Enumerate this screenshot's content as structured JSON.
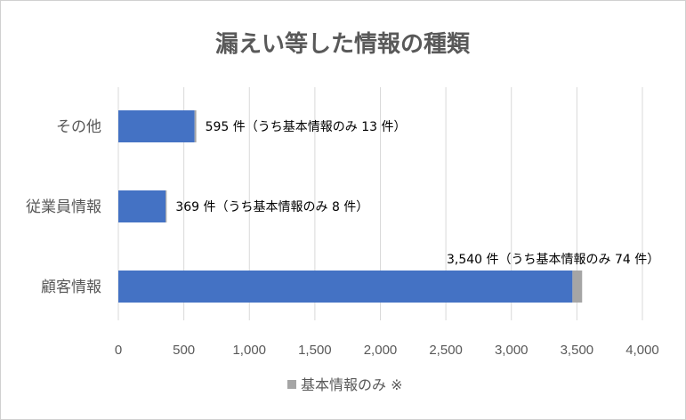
{
  "chart_data": {
    "type": "bar",
    "orientation": "horizontal",
    "stacked": true,
    "title": "漏えい等した情報の種類",
    "categories": [
      "その他",
      "従業員情報",
      "顧客情報"
    ],
    "series": [
      {
        "color": "#4472c4",
        "values": [
          582,
          361,
          3466
        ]
      },
      {
        "name": "基本情報のみ ※",
        "color": "#a5a5a5",
        "values": [
          13,
          8,
          74
        ]
      }
    ],
    "totals": [
      595,
      369,
      3540
    ],
    "data_labels": [
      "595 件（うち基本情報のみ 13 件）",
      "369 件（うち基本情報のみ 8 件）",
      "3,540 件（うち基本情報のみ 74 件）"
    ],
    "x_ticks": [
      "0",
      "500",
      "1,000",
      "1,500",
      "2,000",
      "2,500",
      "3,000",
      "3,500",
      "4,000"
    ],
    "xlim": [
      0,
      4000
    ],
    "grid": true,
    "legend_position": "bottom"
  }
}
